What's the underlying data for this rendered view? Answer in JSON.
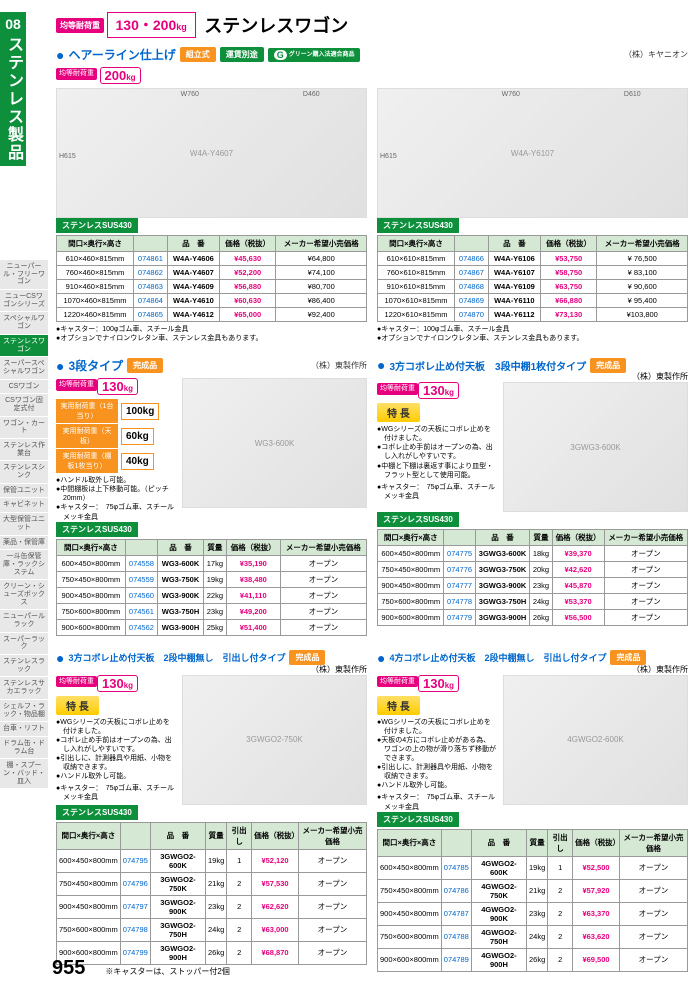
{
  "chapter": {
    "num": "08",
    "title": "ステンレス製品"
  },
  "sidebar": [
    "ニューパール・フリーワゴン",
    "ニューCSワゴンシリーズ",
    "スペシャルワゴン",
    "ステンレスワゴン",
    "スーパースペシャルワゴン",
    "CSワゴン",
    "CSワゴン固定式付",
    "ワゴン・カート",
    "ステンレス作業台",
    "ステンレスシンク",
    "保管ユニット",
    "キャビネット",
    "大型保管ユニット",
    "薬品・保管庫",
    "一斗缶保管庫・ラックシステム",
    "クリーン・シューズボックス",
    "ニューパールラック",
    "スーパーラック",
    "ステンレスラック",
    "ステンレスサカエラック",
    "シェルフ・ラック・物品棚",
    "台車・リフト",
    "ドラム缶・ドラム台",
    "棚・スプーン・バッド・皿入"
  ],
  "sidebar_active_idx": 3,
  "header": {
    "load_label": "均等耐荷重",
    "loads": "130・200",
    "unit": "kg",
    "title": "ステンレスワゴン"
  },
  "sec1": {
    "title": "ヘアーライン仕上げ",
    "tags": [
      "組立式",
      "運賃別途"
    ],
    "g_label": "グリーン購入法適合商品",
    "maker": "（株）キヤニオン",
    "load_label": "均等耐荷重",
    "load": "200",
    "unit": "kg"
  },
  "tbl1_headers": [
    "間口×奥行×高さ",
    "",
    "品　番",
    "価格（税抜）",
    "メーカー希望小売価格"
  ],
  "img1l_label": "W4A-Y4607",
  "img1r_label": "W4A-Y6107",
  "mat1": "ステンレスSUS430",
  "tbl1l": [
    [
      "610×460×815mm",
      "074861",
      "W4A-Y4606",
      "¥45,630",
      "¥64,800"
    ],
    [
      "760×460×815mm",
      "074862",
      "W4A-Y4607",
      "¥52,200",
      "¥74,100"
    ],
    [
      "910×460×815mm",
      "074863",
      "W4A-Y4609",
      "¥56,880",
      "¥80,700"
    ],
    [
      "1070×460×815mm",
      "074864",
      "W4A-Y4610",
      "¥60,630",
      "¥86,400"
    ],
    [
      "1220×460×815mm",
      "074865",
      "W4A-Y4612",
      "¥65,000",
      "¥92,400"
    ]
  ],
  "tbl1r": [
    [
      "610×610×815mm",
      "074866",
      "W4A-Y6106",
      "¥53,750",
      "¥ 76,500"
    ],
    [
      "760×610×815mm",
      "074867",
      "W4A-Y6107",
      "¥58,750",
      "¥ 83,100"
    ],
    [
      "910×610×815mm",
      "074868",
      "W4A-Y6109",
      "¥63,750",
      "¥ 90,600"
    ],
    [
      "1070×610×815mm",
      "074869",
      "W4A-Y6110",
      "¥66,880",
      "¥ 95,400"
    ],
    [
      "1220×610×815mm",
      "074870",
      "W4A-Y6112",
      "¥73,130",
      "¥103,800"
    ]
  ],
  "notes1": [
    "●キャスター：100φゴム車、スチール金具",
    "●オプションでナイロンウレタン車、ステンレス金具もあります。"
  ],
  "sec2l": {
    "title": "3段タイプ",
    "tag": "完成品",
    "maker": "（株）東製作所",
    "load_label": "均等耐荷重",
    "load": "130",
    "unit": "kg",
    "img": "WG3-600K"
  },
  "sec2l_feats": [
    [
      "実用耐荷重（1台当り）",
      "100kg"
    ],
    [
      "実用耐荷重（天　板）",
      "60kg"
    ],
    [
      "実用耐荷重（棚板1枚当り）",
      "40kg"
    ]
  ],
  "sec2l_notes": [
    "●ハンドル取外し可能。",
    "●中間棚板は上下移動可能。（ピッチ20mm）",
    "●キャスター：　75φゴム車、スチールメッキ金具"
  ],
  "tbl2_headers": [
    "間口×奥行×高さ",
    "",
    "品　番",
    "質量",
    "価格（税抜）",
    "メーカー希望小売価格"
  ],
  "tbl2l": [
    [
      "600×450×800mm",
      "074558",
      "WG3-600K",
      "17kg",
      "¥35,190",
      "オープン"
    ],
    [
      "750×450×800mm",
      "074559",
      "WG3-750K",
      "19kg",
      "¥38,480",
      "オープン"
    ],
    [
      "900×450×800mm",
      "074560",
      "WG3-900K",
      "22kg",
      "¥41,110",
      "オープン"
    ],
    [
      "750×600×800mm",
      "074561",
      "WG3-750H",
      "23kg",
      "¥49,200",
      "オープン"
    ],
    [
      "900×600×800mm",
      "074562",
      "WG3-900H",
      "25kg",
      "¥51,400",
      "オープン"
    ]
  ],
  "sec2r": {
    "title": "3方コボレ止め付天板　3段中棚1枚付タイプ",
    "tag": "完成品",
    "maker": "（株）東製作所",
    "load": "130",
    "img": "3GWG3-600K"
  },
  "sec2r_feat": [
    "●WGシリーズの天板にコボレ止めを付けました。",
    "●コボレ止め手前はオープンの為、出し入れがしやすいです。",
    "●中棚と下棚は裏返す事により皿型・フラット型として使用可能。"
  ],
  "sec2r_notes": [
    "●キャスター：　75φゴム車、スチールメッキ金具"
  ],
  "tbl2r": [
    [
      "600×450×800mm",
      "074775",
      "3GWG3-600K",
      "18kg",
      "¥39,370",
      "オープン"
    ],
    [
      "750×450×800mm",
      "074776",
      "3GWG3-750K",
      "20kg",
      "¥42,620",
      "オープン"
    ],
    [
      "900×450×800mm",
      "074777",
      "3GWG3-900K",
      "23kg",
      "¥45,870",
      "オープン"
    ],
    [
      "750×600×800mm",
      "074778",
      "3GWG3-750H",
      "24kg",
      "¥53,370",
      "オープン"
    ],
    [
      "900×600×800mm",
      "074779",
      "3GWG3-900H",
      "26kg",
      "¥56,500",
      "オープン"
    ]
  ],
  "sec3l": {
    "title": "3方コボレ止め付天板　2段中棚無し　引出し付タイプ",
    "tag": "完成品",
    "maker": "（株）東製作所",
    "load": "130",
    "img": "3GWGO2-750K"
  },
  "sec3l_feat": [
    "●WGシリーズの天板にコボレ止めを付けました。",
    "●コボレ止め手前はオープンの為、出し入れがしやすいです。",
    "●引出しに、計測器具や用紙、小物を収納できます。",
    "●ハンドル取外し可能。"
  ],
  "sec3r": {
    "title": "4方コボレ止め付天板　2段中棚無し　引出し付タイプ",
    "tag": "完成品",
    "maker": "（株）東製作所",
    "load": "130",
    "img": "4GWGO2-600K"
  },
  "sec3r_feat": [
    "●WGシリーズの天板にコボレ止めを付けました。",
    "●天板の4方にコボレ止めがある為、ワゴンの上の物が滑り落ちず移動ができます。",
    "●引出しに、計測器具や用紙、小物を収納できます。",
    "●ハンドル取外し可能。"
  ],
  "sec3_notes": [
    "●キャスター：　75φゴム車、スチールメッキ金具"
  ],
  "tbl3_headers": [
    "間口×奥行×高さ",
    "",
    "品　番",
    "質量",
    "引出し",
    "価格（税抜）",
    "メーカー希望小売価格"
  ],
  "tbl3l": [
    [
      "600×450×800mm",
      "074795",
      "3GWGO2-600K",
      "19kg",
      "1",
      "¥52,120",
      "オープン"
    ],
    [
      "750×450×800mm",
      "074796",
      "3GWGO2-750K",
      "21kg",
      "2",
      "¥57,530",
      "オープン"
    ],
    [
      "900×450×800mm",
      "074797",
      "3GWGO2-900K",
      "23kg",
      "2",
      "¥62,620",
      "オープン"
    ],
    [
      "750×600×800mm",
      "074798",
      "3GWGO2-750H",
      "24kg",
      "2",
      "¥63,000",
      "オープン"
    ],
    [
      "900×600×800mm",
      "074799",
      "3GWGO2-900H",
      "26kg",
      "2",
      "¥68,870",
      "オープン"
    ]
  ],
  "tbl3r": [
    [
      "600×450×800mm",
      "074785",
      "4GWGO2-600K",
      "19kg",
      "1",
      "¥52,500",
      "オープン"
    ],
    [
      "750×450×800mm",
      "074786",
      "4GWGO2-750K",
      "21kg",
      "2",
      "¥57,920",
      "オープン"
    ],
    [
      "900×450×800mm",
      "074787",
      "4GWGO2-900K",
      "23kg",
      "2",
      "¥63,370",
      "オープン"
    ],
    [
      "750×600×800mm",
      "074788",
      "4GWGO2-750H",
      "24kg",
      "2",
      "¥63,620",
      "オープン"
    ],
    [
      "900×600×800mm",
      "074789",
      "4GWGO2-900H",
      "26kg",
      "2",
      "¥69,500",
      "オープン"
    ]
  ],
  "footer": {
    "page": "955",
    "note": "※キャスターは、ストッパー付2個"
  },
  "tokuchou": "特 長"
}
